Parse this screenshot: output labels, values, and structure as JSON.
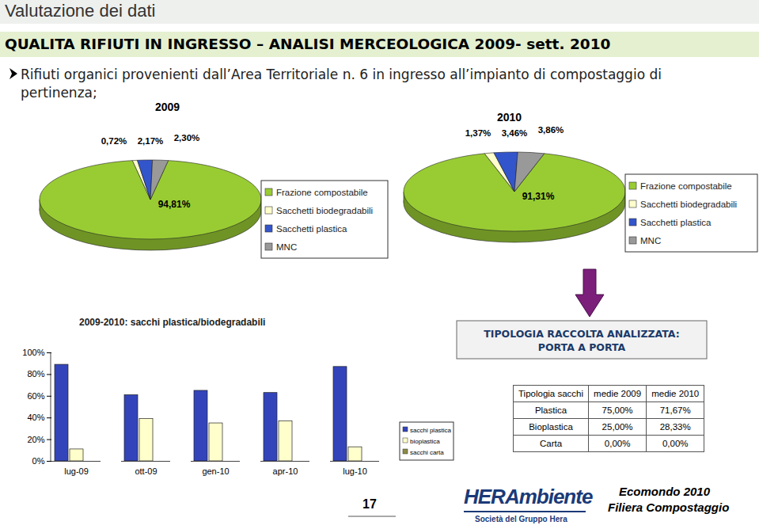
{
  "header": {
    "title": "Valutazione dei dati",
    "heading": "QUALITA RIFIUTI IN INGRESSO – ANALISI MERCEOLOGICA 2009- sett. 2010",
    "bullet": "Rifiuti organici provenienti dall’Area Territoriale n. 6 in ingresso all’impianto di compostaggio di pertinenza;"
  },
  "chart_data": [
    {
      "type": "pie",
      "title": "2009",
      "categories": [
        "Frazione compostabile",
        "Sacchetti biodegradabili",
        "Sacchetti plastica",
        "MNC"
      ],
      "values": [
        94.81,
        0.72,
        2.17,
        2.3
      ],
      "value_labels": [
        "94,81%",
        "0,72%",
        "2,17%",
        "2,30%"
      ],
      "colors": [
        "#99cc33",
        "#ffffcc",
        "#3355cc",
        "#999999"
      ],
      "data_labels": true,
      "legend": "right"
    },
    {
      "type": "pie",
      "title": "2010",
      "categories": [
        "Frazione compostabile",
        "Sacchetti biodegradabili",
        "Sacchetti plastica",
        "MNC"
      ],
      "values": [
        91.31,
        1.37,
        3.46,
        3.86
      ],
      "value_labels": [
        "91,31%",
        "1,37%",
        "3,46%",
        "3,86%"
      ],
      "colors": [
        "#99cc33",
        "#ffffcc",
        "#3355cc",
        "#999999"
      ],
      "data_labels": true,
      "legend": "right"
    },
    {
      "type": "bar",
      "title": "2009-2010: sacchi plastica/biodegradabili",
      "categories": [
        "lug-09",
        "ott-09",
        "gen-10",
        "apr-10",
        "lug-10"
      ],
      "series": [
        {
          "name": "sacchi plastica",
          "color": "#3344bb",
          "values": [
            89,
            61,
            65,
            63,
            87
          ]
        },
        {
          "name": "bioplastica",
          "color": "#ffffcc",
          "values": [
            11,
            39,
            35,
            37,
            13
          ]
        },
        {
          "name": "sacchi carta",
          "color": "#8c8c46",
          "values": [
            0,
            0,
            0,
            0,
            0
          ]
        }
      ],
      "ylim": [
        0,
        100
      ],
      "yticks": [
        {
          "value": 0,
          "label": "0%"
        },
        {
          "value": 20,
          "label": "20%"
        },
        {
          "value": 40,
          "label": "40%"
        },
        {
          "value": 60,
          "label": "60%"
        },
        {
          "value": 80,
          "label": "80%"
        },
        {
          "value": 100,
          "label": "100%"
        }
      ],
      "grid": false,
      "legend": "right"
    }
  ],
  "box": {
    "lines": [
      "TIPOLOGIA RACCOLTA ANALIZZATA:",
      "PORTA A PORTA"
    ]
  },
  "table": {
    "header": [
      "Tipologia sacchi",
      "medie 2009",
      "medie 2010"
    ],
    "rows": [
      [
        "Plastica",
        "75,00%",
        "71,67%"
      ],
      [
        "Bioplastica",
        "25,00%",
        "28,33%"
      ],
      [
        "Carta",
        "0,00%",
        "0,00%"
      ]
    ]
  },
  "footer": {
    "page": "17",
    "brand": "HERAmbiente",
    "brand_sub": "Società del Gruppo Hera",
    "event": "Ecomondo 2010",
    "event_sub": "Filiera Compostaggio"
  }
}
